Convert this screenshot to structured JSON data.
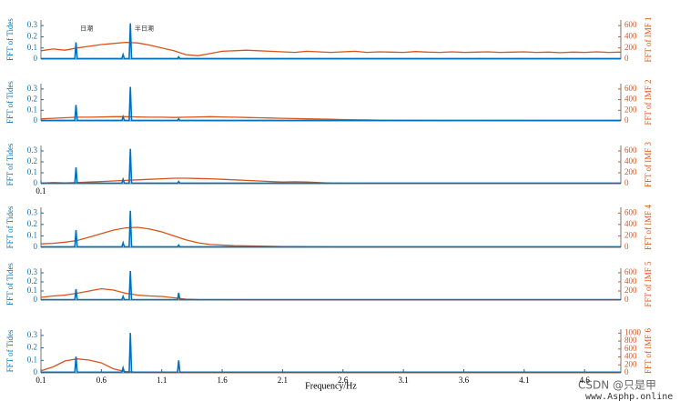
{
  "chart_data": [
    {
      "type": "line",
      "y_label": "FFT of Tides",
      "y2_label": "FFT of IMF 1",
      "xlim": [
        0.1,
        4.9
      ],
      "ylim": [
        0,
        0.35
      ],
      "yticks": [
        0,
        0.1,
        0.2,
        0.3
      ],
      "y2lim": [
        0,
        700
      ],
      "y2ticks": [
        0,
        200,
        400,
        600
      ],
      "annotations": [
        "日潮",
        "半日潮"
      ],
      "series": [
        {
          "color": "#d95319",
          "axis": "y2",
          "x": [
            0.1,
            0.2,
            0.3,
            0.4,
            0.5,
            0.6,
            0.7,
            0.8,
            0.9,
            1.0,
            1.1,
            1.2,
            1.3,
            1.4,
            1.5,
            1.6,
            1.7,
            1.8,
            1.9,
            2.0,
            2.1,
            2.2,
            2.3,
            2.4,
            2.5,
            2.6,
            2.7,
            2.8,
            2.9,
            3.0,
            3.1,
            3.2,
            3.3,
            3.4,
            3.5,
            3.6,
            3.7,
            3.8,
            3.9,
            4.0,
            4.1,
            4.2,
            4.3,
            4.4,
            4.5,
            4.6,
            4.7,
            4.8,
            4.9
          ],
          "values": [
            150,
            180,
            160,
            200,
            230,
            260,
            280,
            300,
            290,
            250,
            200,
            150,
            80,
            60,
            100,
            140,
            150,
            160,
            150,
            140,
            130,
            120,
            140,
            130,
            120,
            130,
            140,
            120,
            130,
            125,
            120,
            135,
            125,
            120,
            130,
            120,
            125,
            130,
            120,
            125,
            130,
            120,
            125,
            115,
            125,
            120,
            130,
            120,
            125
          ]
        },
        {
          "color": "#0072bd",
          "x": [
            0.1,
            0.38,
            0.39,
            0.4,
            0.77,
            0.78,
            0.79,
            0.83,
            0.84,
            0.85,
            1.23,
            1.24,
            1.25,
            4.9
          ],
          "values": [
            0.005,
            0.005,
            0.15,
            0.005,
            0.005,
            0.04,
            0.005,
            0.005,
            0.32,
            0.005,
            0.005,
            0.02,
            0.005,
            0.005
          ]
        }
      ]
    },
    {
      "type": "line",
      "y_label": "FFT of Tides",
      "y2_label": "FFT of IMF 2",
      "xlim": [
        0.1,
        4.9
      ],
      "ylim": [
        0,
        0.35
      ],
      "yticks": [
        0,
        0.1,
        0.2,
        0.3
      ],
      "y2lim": [
        0,
        700
      ],
      "y2ticks": [
        0,
        200,
        400,
        600
      ],
      "series": [
        {
          "color": "#d95319",
          "axis": "y2",
          "x": [
            0.1,
            0.2,
            0.3,
            0.4,
            0.5,
            0.6,
            0.7,
            0.8,
            0.9,
            1.0,
            1.1,
            1.2,
            1.3,
            1.4,
            1.5,
            1.6,
            1.7,
            1.8,
            1.9,
            2.0,
            2.1,
            2.2,
            2.3,
            2.4,
            2.5,
            2.6,
            2.7,
            2.8,
            2.9,
            3.0,
            3.1,
            3.2,
            3.3,
            3.4,
            3.5,
            3.6,
            3.7,
            3.8,
            3.9,
            4.0,
            4.1,
            4.2,
            4.3,
            4.4,
            4.5,
            4.6,
            4.7,
            4.8,
            4.9
          ],
          "values": [
            40,
            50,
            60,
            70,
            70,
            75,
            80,
            80,
            75,
            70,
            70,
            65,
            70,
            75,
            80,
            75,
            70,
            65,
            60,
            55,
            50,
            45,
            40,
            35,
            30,
            25,
            20,
            18,
            15,
            12,
            10,
            10,
            8,
            8,
            7,
            6,
            6,
            5,
            5,
            5,
            5,
            4,
            4,
            4,
            4,
            3,
            3,
            3,
            3
          ]
        },
        {
          "color": "#0072bd",
          "x": [
            0.1,
            0.38,
            0.39,
            0.4,
            0.77,
            0.78,
            0.79,
            0.83,
            0.84,
            0.85,
            1.23,
            1.24,
            1.25,
            4.9
          ],
          "values": [
            0.005,
            0.005,
            0.15,
            0.005,
            0.005,
            0.04,
            0.005,
            0.005,
            0.32,
            0.005,
            0.005,
            0.02,
            0.005,
            0.005
          ]
        }
      ]
    },
    {
      "type": "line",
      "y_label": "FFT of Tides",
      "y2_label": "FFT of IMF 3",
      "xlim": [
        0.1,
        4.9
      ],
      "ylim": [
        0,
        0.35
      ],
      "yticks": [
        0,
        0.1,
        0.2,
        0.3
      ],
      "y2lim": [
        0,
        700
      ],
      "y2ticks": [
        0,
        200,
        400,
        600
      ],
      "xticks": [
        0.1
      ],
      "series": [
        {
          "color": "#d95319",
          "axis": "y2",
          "x": [
            0.1,
            0.2,
            0.3,
            0.4,
            0.5,
            0.6,
            0.7,
            0.8,
            0.9,
            1.0,
            1.1,
            1.2,
            1.3,
            1.4,
            1.5,
            1.6,
            1.7,
            1.8,
            1.9,
            2.0,
            2.1,
            2.2,
            2.3,
            2.4,
            2.5,
            2.6,
            2.7,
            2.8,
            2.9,
            3.0,
            3.1,
            3.2,
            3.3,
            3.4,
            3.5,
            3.6,
            3.7,
            3.8,
            3.9,
            4.0,
            4.1,
            4.2,
            4.3,
            4.4,
            4.5,
            4.6,
            4.7,
            4.8,
            4.9
          ],
          "values": [
            10,
            20,
            15,
            20,
            30,
            40,
            50,
            60,
            70,
            80,
            90,
            100,
            100,
            95,
            90,
            80,
            70,
            60,
            50,
            40,
            30,
            35,
            30,
            20,
            10,
            6,
            5,
            4,
            3,
            3,
            3,
            2,
            2,
            2,
            2,
            2,
            2,
            2,
            2,
            2,
            2,
            2,
            2,
            2,
            2,
            2,
            2,
            2,
            2
          ]
        },
        {
          "color": "#0072bd",
          "x": [
            0.1,
            0.38,
            0.39,
            0.4,
            0.77,
            0.78,
            0.79,
            0.83,
            0.84,
            0.85,
            1.23,
            1.24,
            1.25,
            4.9
          ],
          "values": [
            0.005,
            0.005,
            0.15,
            0.005,
            0.005,
            0.04,
            0.005,
            0.005,
            0.32,
            0.005,
            0.005,
            0.02,
            0.005,
            0.005
          ]
        }
      ]
    },
    {
      "type": "line",
      "y_label": "FFT of Tides",
      "y2_label": "FFT of IMF 4",
      "xlim": [
        0.1,
        4.9
      ],
      "ylim": [
        0,
        0.35
      ],
      "yticks": [
        0,
        0.1,
        0.2,
        0.3
      ],
      "y2lim": [
        0,
        700
      ],
      "y2ticks": [
        0,
        200,
        400,
        600
      ],
      "series": [
        {
          "color": "#d95319",
          "axis": "y2",
          "x": [
            0.1,
            0.2,
            0.3,
            0.4,
            0.5,
            0.6,
            0.7,
            0.8,
            0.9,
            1.0,
            1.1,
            1.2,
            1.3,
            1.4,
            1.5,
            1.6,
            1.7,
            1.8,
            1.9,
            2.0,
            2.1,
            2.2,
            2.3,
            2.4,
            2.5,
            2.6,
            2.7,
            2.8,
            2.9,
            3.0,
            3.1,
            3.2,
            3.3,
            3.4,
            3.5,
            3.6,
            3.7,
            3.8,
            3.9,
            4.0,
            4.1,
            4.2,
            4.3,
            4.4,
            4.5,
            4.6,
            4.7,
            4.8,
            4.9
          ],
          "values": [
            60,
            70,
            90,
            120,
            180,
            240,
            300,
            340,
            350,
            320,
            270,
            200,
            130,
            80,
            50,
            40,
            30,
            25,
            20,
            18,
            15,
            12,
            10,
            8,
            6,
            5,
            4,
            4,
            3,
            3,
            3,
            3,
            3,
            3,
            3,
            3,
            3,
            3,
            3,
            3,
            3,
            3,
            3,
            3,
            3,
            3,
            3,
            3,
            3
          ]
        },
        {
          "color": "#0072bd",
          "x": [
            0.1,
            0.38,
            0.39,
            0.4,
            0.77,
            0.78,
            0.79,
            0.83,
            0.84,
            0.85,
            1.23,
            1.24,
            1.25,
            4.9
          ],
          "values": [
            0.005,
            0.005,
            0.15,
            0.005,
            0.005,
            0.04,
            0.005,
            0.005,
            0.32,
            0.005,
            0.005,
            0.02,
            0.005,
            0.005
          ]
        }
      ]
    },
    {
      "type": "line",
      "y_label": "FFT of Tides",
      "y2_label": "FFT of IMF 5",
      "xlim": [
        0.1,
        4.9
      ],
      "ylim": [
        0,
        0.35
      ],
      "yticks": [
        0,
        0.1,
        0.2,
        0.3
      ],
      "y2lim": [
        0,
        700
      ],
      "y2ticks": [
        0,
        200,
        400,
        600
      ],
      "series": [
        {
          "color": "#d95319",
          "axis": "y2",
          "x": [
            0.1,
            0.2,
            0.3,
            0.4,
            0.5,
            0.6,
            0.7,
            0.8,
            0.9,
            1.0,
            1.1,
            1.2,
            1.3,
            1.4,
            1.5,
            1.6,
            1.7,
            1.8,
            1.9,
            2.0,
            2.1,
            2.2,
            2.3,
            2.4,
            2.5,
            2.6,
            2.7,
            2.8,
            2.9,
            3.0,
            3.1,
            3.2,
            3.3,
            3.4,
            3.5,
            3.6,
            3.7,
            3.8,
            3.9,
            4.0,
            4.1,
            4.2,
            4.3,
            4.4,
            4.5,
            4.6,
            4.7,
            4.8,
            4.9
          ],
          "values": [
            60,
            90,
            110,
            150,
            200,
            250,
            220,
            150,
            110,
            90,
            80,
            50,
            20,
            10,
            8,
            6,
            5,
            5,
            5,
            5,
            5,
            5,
            5,
            5,
            5,
            5,
            5,
            5,
            5,
            5,
            5,
            5,
            5,
            5,
            5,
            5,
            5,
            5,
            5,
            5,
            5,
            5,
            5,
            5,
            5,
            5,
            5,
            5,
            5
          ]
        },
        {
          "color": "#0072bd",
          "x": [
            0.1,
            0.38,
            0.39,
            0.4,
            0.77,
            0.78,
            0.79,
            0.83,
            0.84,
            0.85,
            1.23,
            1.24,
            1.25,
            4.9
          ],
          "values": [
            0.005,
            0.005,
            0.12,
            0.005,
            0.005,
            0.04,
            0.005,
            0.005,
            0.32,
            0.005,
            0.005,
            0.08,
            0.005,
            0.005
          ]
        }
      ]
    },
    {
      "type": "line",
      "y_label": "FFT of Tides",
      "y2_label": "FFT of IMF 6",
      "xlim": [
        0.1,
        4.9
      ],
      "ylim": [
        0,
        0.35
      ],
      "yticks": [
        0,
        0.1,
        0.2,
        0.3
      ],
      "y2lim": [
        0,
        1100
      ],
      "y2ticks": [
        0,
        200,
        400,
        600,
        800,
        1000
      ],
      "xticks": [
        0.1,
        0.6,
        1.1,
        1.6,
        2.1,
        2.6,
        3.1,
        3.6,
        4.1,
        4.6
      ],
      "x_label": "Frequency/Hz",
      "series": [
        {
          "color": "#d95319",
          "axis": "y2",
          "x": [
            0.1,
            0.2,
            0.3,
            0.4,
            0.5,
            0.6,
            0.7,
            0.8,
            0.9,
            1.0,
            1.1,
            1.2,
            1.3,
            1.4,
            1.5,
            1.6,
            1.7,
            1.8,
            1.9,
            2.0,
            2.1,
            2.2,
            2.3,
            2.4,
            2.5,
            2.6,
            2.7,
            2.8,
            2.9,
            3.0,
            3.1,
            3.2,
            3.3,
            3.4,
            3.5,
            3.6,
            3.7,
            3.8,
            3.9,
            4.0,
            4.1,
            4.2,
            4.3,
            4.4,
            4.5,
            4.6,
            4.7,
            4.8,
            4.9
          ],
          "values": [
            50,
            150,
            300,
            350,
            320,
            250,
            100,
            30,
            15,
            10,
            5,
            5,
            5,
            5,
            5,
            5,
            5,
            5,
            5,
            5,
            5,
            5,
            5,
            5,
            5,
            5,
            5,
            5,
            5,
            5,
            5,
            5,
            5,
            5,
            5,
            5,
            5,
            5,
            5,
            5,
            5,
            5,
            5,
            5,
            5,
            5,
            5,
            5,
            5
          ]
        },
        {
          "color": "#0072bd",
          "x": [
            0.1,
            0.38,
            0.39,
            0.4,
            0.77,
            0.78,
            0.79,
            0.83,
            0.84,
            0.85,
            1.23,
            1.24,
            1.25,
            4.9
          ],
          "values": [
            0.005,
            0.005,
            0.13,
            0.005,
            0.005,
            0.04,
            0.005,
            0.005,
            0.32,
            0.005,
            0.005,
            0.1,
            0.005,
            0.005
          ]
        }
      ]
    }
  ],
  "watermark": {
    "text": "CSDN @只是甲",
    "site": "www.Asphp.online"
  }
}
